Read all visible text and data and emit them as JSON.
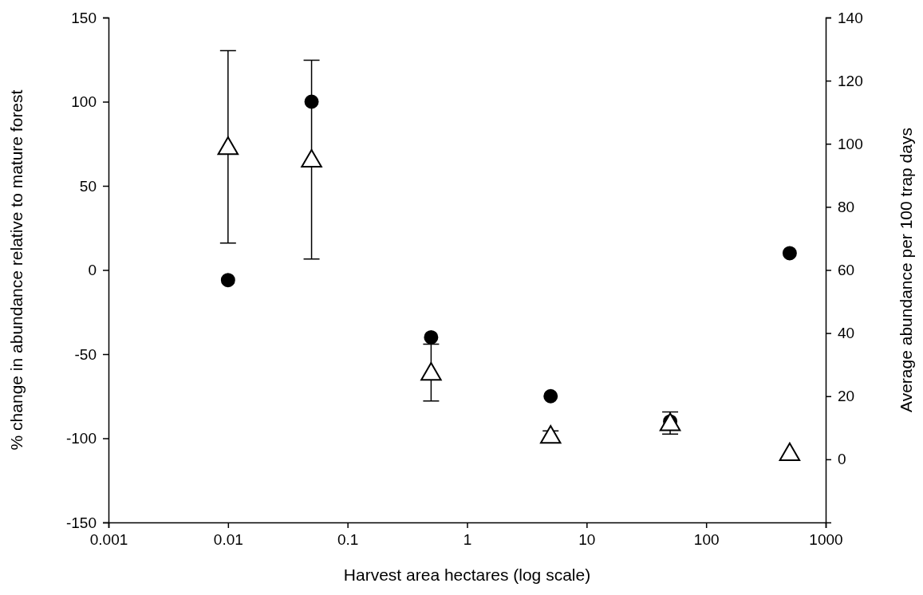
{
  "chart_data": {
    "type": "scatter",
    "xlabel": "Harvest area hectares (log scale)",
    "ylabel": "% change in abundance relative to mature forest",
    "y2label": "Average abundance per 100 trap days",
    "log": "x",
    "xlim": [
      0.001,
      1000
    ],
    "xticks": [
      0.001,
      0.01,
      0.1,
      1,
      10,
      100,
      1000
    ],
    "ylim": [
      -150,
      150
    ],
    "yticks": [
      -150,
      -100,
      -50,
      0,
      50,
      100,
      150
    ],
    "y2lim": [
      -20,
      140
    ],
    "y2ticks": [
      0,
      20,
      40,
      60,
      80,
      100,
      120,
      140
    ],
    "grid": false,
    "series": [
      {
        "color": "#000000",
        "marker": "circle",
        "x": [
          0.01,
          0.05,
          0.5,
          5,
          50,
          500
        ],
        "values": [
          -6,
          100,
          -40,
          -75,
          -90,
          10
        ]
      },
      {
        "color": "#000000",
        "marker": "triangle",
        "axis": "y2",
        "x": [
          0.01,
          0.05,
          0.5,
          5,
          50,
          500
        ],
        "values": [
          99,
          95,
          27.5,
          7.5,
          11.5,
          2
        ],
        "errors": [
          30.5,
          31.5,
          9,
          1.5,
          3.5,
          null
        ]
      }
    ]
  }
}
